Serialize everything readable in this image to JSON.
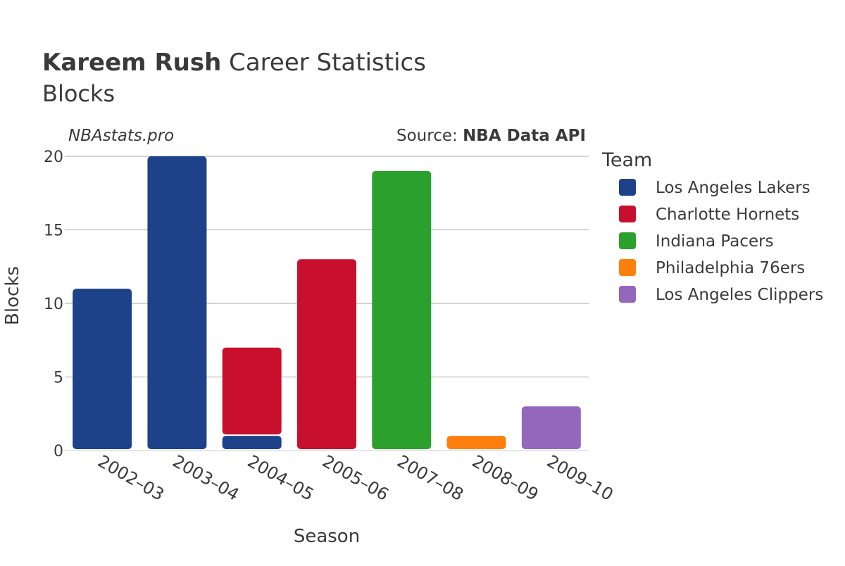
{
  "chart_data": {
    "type": "bar",
    "stacked": true,
    "title_bold": "Kareem Rush",
    "title_rest": " Career Statistics",
    "subtitle": "Blocks",
    "watermark": "NBAstats.pro",
    "source_prefix": "Source: ",
    "source_name": "NBA Data API",
    "xlabel": "Season",
    "ylabel": "Blocks",
    "ylim": [
      0,
      20
    ],
    "yticks": [
      0,
      5,
      10,
      15,
      20
    ],
    "grid": true,
    "legend_title": "Team",
    "legend_position": "right",
    "categories": [
      "2002–03",
      "2003–04",
      "2004–05",
      "2005–06",
      "2007–08",
      "2008–09",
      "2009–10"
    ],
    "series": [
      {
        "name": "Los Angeles Lakers",
        "color": "#1d428a",
        "values": [
          11,
          20,
          1,
          0,
          0,
          0,
          0
        ]
      },
      {
        "name": "Charlotte Hornets",
        "color": "#c8102e",
        "values": [
          0,
          0,
          6,
          13,
          0,
          0,
          0
        ]
      },
      {
        "name": "Indiana Pacers",
        "color": "#2ca02c",
        "values": [
          0,
          0,
          0,
          0,
          19,
          0,
          0
        ]
      },
      {
        "name": "Philadelphia 76ers",
        "color": "#ff7f0e",
        "values": [
          0,
          0,
          0,
          0,
          0,
          1,
          0
        ]
      },
      {
        "name": "Los Angeles Clippers",
        "color": "#9467bd",
        "values": [
          0,
          0,
          0,
          0,
          0,
          0,
          3
        ]
      }
    ]
  }
}
